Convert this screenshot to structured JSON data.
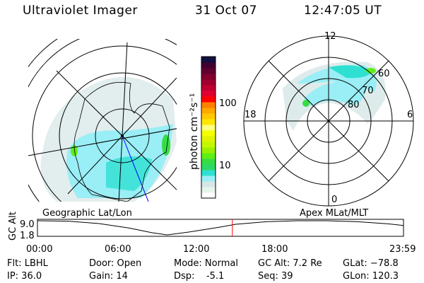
{
  "header": {
    "instrument": "Ultraviolet Imager",
    "date": "31 Oct 07",
    "time": "12:47:05 UT"
  },
  "colorbar": {
    "unit_label": "photon cm⁻²s⁻¹",
    "ticks": [
      "100",
      "10"
    ],
    "colors": [
      "#ffffff",
      "#e8f4ee",
      "#d6e6e6",
      "#9aeef6",
      "#2ee0d2",
      "#2ed865",
      "#35dd45",
      "#60ee18",
      "#9af000",
      "#c4f800",
      "#e0f400",
      "#f4ff00",
      "#ffff80",
      "#ffe600",
      "#ffc800",
      "#ffa800",
      "#ff8000",
      "#ff0000",
      "#e00030",
      "#c00030",
      "#a00030",
      "#800030",
      "#600030",
      "#400030",
      "#101040"
    ]
  },
  "left_map": {
    "label": "Geographic Lat/Lon"
  },
  "right_map": {
    "label": "Apex MLat/MLT",
    "mlt_labels": {
      "top": "12",
      "bottom": "0",
      "left": "18",
      "right": "6"
    },
    "lat_labels": [
      "60",
      "70",
      "80"
    ]
  },
  "altitude_plot": {
    "ylabel": "GC Alt",
    "yticks": [
      "9.0",
      "1.8"
    ],
    "xticks": [
      "00:00",
      "06:00",
      "12:00",
      "18:00",
      "23:59"
    ],
    "current_time_marker_hours": 12.78,
    "marker_color": "#ff0000",
    "altitude_re": [
      [
        0,
        9.0
      ],
      [
        2,
        8.8
      ],
      [
        4,
        7.6
      ],
      [
        6,
        5.3
      ],
      [
        7.5,
        2.9
      ],
      [
        8.5,
        1.8
      ],
      [
        10,
        3.3
      ],
      [
        12,
        5.8
      ],
      [
        13,
        7.2
      ],
      [
        15,
        8.5
      ],
      [
        17,
        9.0
      ],
      [
        19,
        9.0
      ],
      [
        21,
        8.5
      ],
      [
        23,
        7.4
      ],
      [
        24,
        6.6
      ]
    ]
  },
  "status": {
    "flt": "Flt: LBHL",
    "ip": "IP: 36.0",
    "door": "Door: Open",
    "gain": "Gain: 14",
    "mode": "Mode: Normal",
    "dsp": "Dsp:    -5.1",
    "gc_alt": "GC Alt: 7.2 Re",
    "seq": "Seq: 39",
    "glat": "GLat: −78.8",
    "glon": "GLon: 120.3"
  }
}
